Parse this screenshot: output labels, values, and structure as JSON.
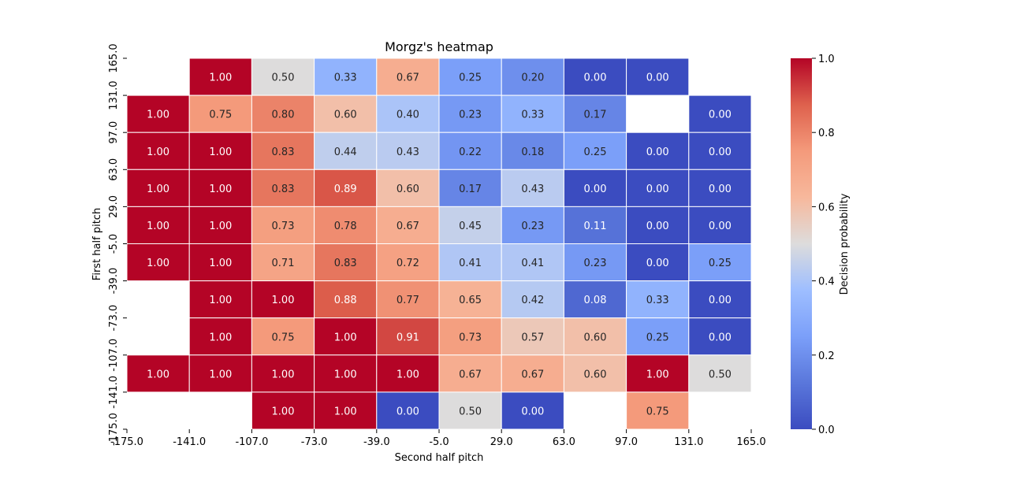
{
  "chart_data": {
    "type": "heatmap",
    "title": "Morgz's heatmap",
    "xlabel": "Second half pitch",
    "ylabel": "First half pitch",
    "x_ticks": [
      "-175.0",
      "-141.0",
      "-107.0",
      "-73.0",
      "-39.0",
      "-5.0",
      "29.0",
      "63.0",
      "97.0",
      "131.0",
      "165.0"
    ],
    "y_ticks": [
      "165.0",
      "131.0",
      "97.0",
      "63.0",
      "29.0",
      "-5.0",
      "-39.0",
      "-73.0",
      "-107.0",
      "-141.0",
      "-175.0"
    ],
    "values": [
      [
        null,
        1.0,
        0.5,
        0.33,
        0.67,
        0.25,
        0.2,
        0.0,
        0.0,
        null
      ],
      [
        1.0,
        0.75,
        0.8,
        0.6,
        0.4,
        0.23,
        0.33,
        0.17,
        null,
        0.0
      ],
      [
        1.0,
        1.0,
        0.83,
        0.44,
        0.43,
        0.22,
        0.18,
        0.25,
        0.0,
        0.0
      ],
      [
        1.0,
        1.0,
        0.83,
        0.89,
        0.6,
        0.17,
        0.43,
        0.0,
        0.0,
        0.0
      ],
      [
        1.0,
        1.0,
        0.73,
        0.78,
        0.67,
        0.45,
        0.23,
        0.11,
        0.0,
        0.0
      ],
      [
        1.0,
        1.0,
        0.71,
        0.83,
        0.72,
        0.41,
        0.41,
        0.23,
        0.0,
        0.25
      ],
      [
        null,
        1.0,
        1.0,
        0.88,
        0.77,
        0.65,
        0.42,
        0.08,
        0.33,
        0.0
      ],
      [
        null,
        1.0,
        0.75,
        1.0,
        0.91,
        0.73,
        0.57,
        0.6,
        0.25,
        0.0
      ],
      [
        1.0,
        1.0,
        1.0,
        1.0,
        1.0,
        0.67,
        0.67,
        0.6,
        1.0,
        0.5
      ],
      [
        null,
        null,
        1.0,
        1.0,
        0.0,
        0.5,
        0.0,
        null,
        0.75,
        null
      ]
    ],
    "colorbar": {
      "label": "Decision probability",
      "range": [
        0.0,
        1.0
      ],
      "ticks": [
        "0.0",
        "0.2",
        "0.4",
        "0.6",
        "0.8",
        "1.0"
      ],
      "colormap": "coolwarm"
    },
    "grid": false
  }
}
